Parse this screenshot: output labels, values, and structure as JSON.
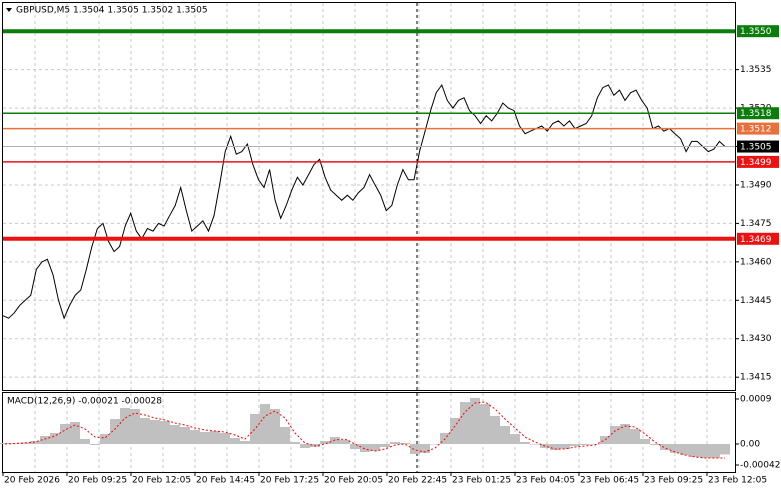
{
  "chart_data": [
    {
      "type": "line",
      "title": "GBPUSD,M5  1.3504 1.3505 1.3502 1.3505",
      "color": "#000000",
      "grid": true,
      "values": [
        1.3439,
        1.3438,
        1.344,
        1.3443,
        1.3445,
        1.3447,
        1.3457,
        1.346,
        1.3461,
        1.3455,
        1.3445,
        1.3438,
        1.3443,
        1.3447,
        1.3449,
        1.3457,
        1.3466,
        1.3473,
        1.3475,
        1.3468,
        1.3464,
        1.3466,
        1.3474,
        1.3479,
        1.3472,
        1.3469,
        1.3473,
        1.3472,
        1.3475,
        1.3474,
        1.3478,
        1.3482,
        1.3489,
        1.348,
        1.3472,
        1.3474,
        1.3476,
        1.3472,
        1.3478,
        1.349,
        1.3503,
        1.3509,
        1.3502,
        1.3503,
        1.3506,
        1.3498,
        1.3492,
        1.3489,
        1.3496,
        1.3484,
        1.3477,
        1.3482,
        1.3488,
        1.3493,
        1.349,
        1.3494,
        1.3498,
        1.35,
        1.3493,
        1.3488,
        1.3486,
        1.3484,
        1.3486,
        1.3484,
        1.3487,
        1.3489,
        1.3494,
        1.349,
        1.3486,
        1.348,
        1.3482,
        1.349,
        1.3496,
        1.3492,
        1.3492,
        1.3503,
        1.3511,
        1.3519,
        1.3526,
        1.3529,
        1.3523,
        1.352,
        1.3523,
        1.3524,
        1.3519,
        1.3517,
        1.3514,
        1.3517,
        1.3515,
        1.3518,
        1.3522,
        1.352,
        1.3519,
        1.3513,
        1.351,
        1.3511,
        1.3512,
        1.3513,
        1.3511,
        1.3514,
        1.3515,
        1.3513,
        1.3515,
        1.3512,
        1.3513,
        1.3514,
        1.3517,
        1.3524,
        1.3528,
        1.3529,
        1.3525,
        1.3527,
        1.3523,
        1.3526,
        1.3527,
        1.3523,
        1.352,
        1.3512,
        1.3513,
        1.3511,
        1.3512,
        1.351,
        1.3508,
        1.3503,
        1.3507,
        1.3507,
        1.3505,
        1.3503,
        1.3504,
        1.3507,
        1.3505
      ],
      "ylim": [
        1.341,
        1.3561
      ],
      "yticks": [
        1.3415,
        {
          "value": 1.343,
          "label": "1.3430"
        },
        1.3445,
        {
          "value": 1.346,
          "label": "1.3460"
        },
        1.3475,
        {
          "value": 1.349,
          "label": "1.3490"
        },
        1.3505,
        {
          "value": 1.352,
          "label": "1.3520"
        },
        1.3535
      ],
      "levels": [
        {
          "value": 1.355,
          "label": "1.3550",
          "color": "#0a7d0a",
          "thick": true
        },
        {
          "value": 1.3518,
          "label": "1.3518",
          "color": "#0a7d0a",
          "thick": false
        },
        {
          "value": 1.3512,
          "label": "1.3512",
          "color": "#e8703a",
          "thick": false
        },
        {
          "value": 1.3505,
          "label": "1.3505",
          "color": "#000000",
          "thick": false
        },
        {
          "value": 1.3499,
          "label": "1.3499",
          "color": "#ee1111",
          "thick": false
        },
        {
          "value": 1.3469,
          "label": "1.3469",
          "color": "#ee1111",
          "thick": true
        }
      ],
      "x_labels": [
        "20 Feb 2026",
        "20 Feb 09:25",
        "20 Feb 12:05",
        "20 Feb 14:45",
        "20 Feb 17:25",
        "20 Feb 20:05",
        "20 Feb 22:45",
        "23 Feb 01:25",
        "23 Feb 04:05",
        "23 Feb 06:45",
        "23 Feb 09:25",
        "23 Feb 12:05"
      ]
    },
    {
      "type": "macd",
      "title": "MACD(12,26,9) -0.00021 -0.00028",
      "histogram_color": "#c0c0c0",
      "signal_color": "#ff0000",
      "histogram": [
        2e-05,
        1e-05,
        3e-05,
        6e-05,
        0.00016,
        0.00022,
        0.0004,
        0.00044,
        0.0001,
        -2e-05,
        0.0002,
        0.0005,
        0.00072,
        0.0007,
        0.00052,
        0.00048,
        0.00046,
        0.00038,
        0.00034,
        0.00028,
        0.00024,
        0.00026,
        0.00022,
        0.00012,
        6e-05,
        0.0006,
        0.0008,
        0.0007,
        0.00034,
        4e-05,
        -8e-05,
        -6e-05,
        6e-05,
        0.00014,
        8e-05,
        -0.0001,
        -0.00016,
        -0.00014,
        -6e-05,
        4e-05,
        2e-05,
        -0.0002,
        -0.00018,
        0,
        0.00022,
        0.00052,
        0.00084,
        0.00092,
        0.0008,
        0.00056,
        0.00036,
        0.0002,
        4e-05,
        0,
        -8e-05,
        -0.00012,
        -0.0001,
        -4e-05,
        -2e-05,
        0,
        0.00016,
        0.00036,
        0.0004,
        0.0003,
        0.0001,
        -2e-05,
        -0.00012,
        -0.00018,
        -0.00022,
        -0.00026,
        -0.00028,
        -0.00028,
        -0.00021
      ],
      "signal": [
        0,
        1e-05,
        2e-05,
        4e-05,
        0.0001,
        0.00016,
        0.00028,
        0.00038,
        0.0003,
        0.00014,
        0.00012,
        0.0003,
        0.00052,
        0.00062,
        0.00058,
        0.00052,
        0.00048,
        0.00042,
        0.00038,
        0.00032,
        0.00028,
        0.00026,
        0.00024,
        0.00018,
        0.0001,
        0.0003,
        0.00056,
        0.00066,
        0.00052,
        0.00022,
        2e-05,
        -4e-05,
        0,
        8e-05,
        0.0001,
        0,
        -0.0001,
        -0.00014,
        -0.0001,
        -2e-05,
        0,
        -0.00012,
        -0.00016,
        -8e-05,
        0.0001,
        0.00036,
        0.00064,
        0.00082,
        0.00084,
        0.0007,
        0.0005,
        0.00032,
        0.00014,
        4e-05,
        -4e-05,
        -0.0001,
        -0.0001,
        -6e-05,
        -4e-05,
        -2e-05,
        8e-05,
        0.00026,
        0.00036,
        0.00034,
        0.0002,
        4e-05,
        -8e-05,
        -0.00016,
        -0.00022,
        -0.00026,
        -0.00028,
        -0.00028,
        -0.00028
      ],
      "ylim": [
        -0.00056,
        0.00104
      ],
      "yticks": [
        0.0009,
        {
          "value": 0,
          "label": "0.00"
        },
        -0.00042
      ]
    }
  ]
}
